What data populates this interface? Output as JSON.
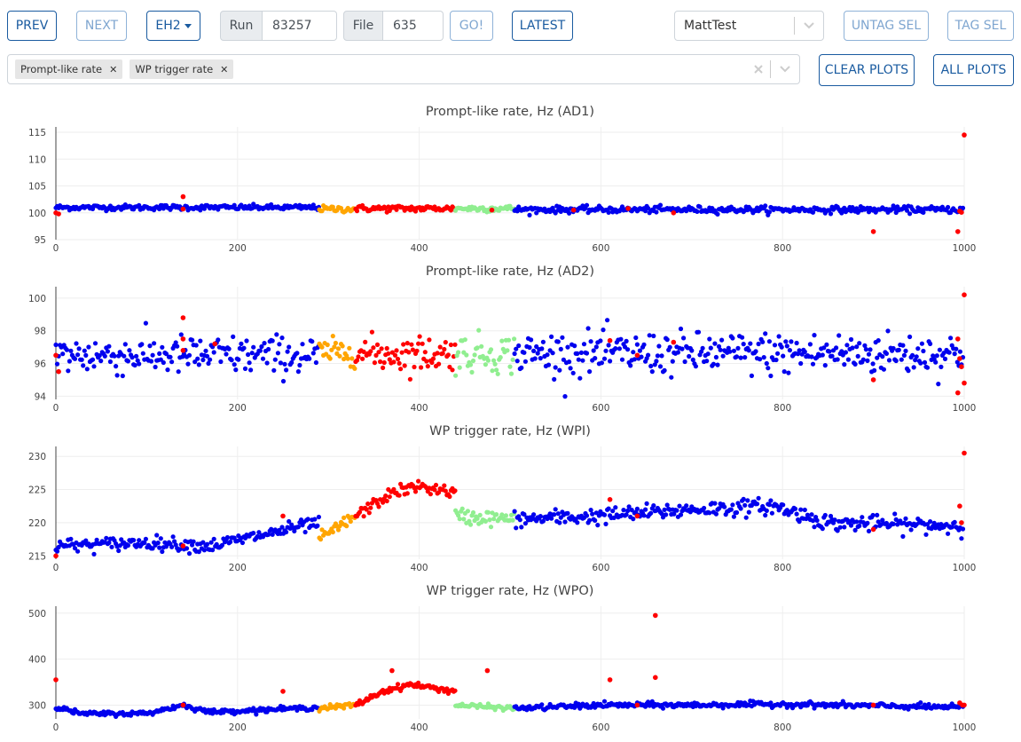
{
  "toolbar": {
    "prev_label": "PREV",
    "next_label": "NEXT",
    "hall_label": "EH2",
    "run_label": "Run",
    "run_value": "83257",
    "file_label": "File",
    "file_value": "635",
    "go_label": "GO!",
    "latest_label": "LATEST",
    "tag_select_value": "MattTest",
    "untag_label": "UNTAG SEL",
    "tag_label": "TAG SEL"
  },
  "plot_selector": {
    "chips": [
      "Prompt-like rate",
      "WP trigger rate"
    ],
    "clear_label": "CLEAR PLOTS",
    "all_label": "ALL PLOTS"
  },
  "colors": {
    "accent": "#1a5ba0",
    "blue": "#0000ee",
    "orange": "#ffa500",
    "red": "#ff0000",
    "green": "#90ee90"
  },
  "chart_data": [
    {
      "type": "scatter",
      "title": "Prompt-like rate, Hz (AD1)",
      "xlim": [
        0,
        1000
      ],
      "ylim": [
        95,
        116
      ],
      "x_ticks": [
        0,
        200,
        400,
        600,
        800,
        1000
      ],
      "y_ticks": [
        95,
        100,
        105,
        110,
        115
      ],
      "segments": [
        {
          "color": "blue",
          "x": [
            0,
            290
          ],
          "trend": [
            [
              0,
              101
            ],
            [
              290,
              101
            ]
          ],
          "noise": 0.5
        },
        {
          "color": "orange",
          "x": [
            290,
            330
          ],
          "trend": [
            [
              290,
              100.7
            ],
            [
              330,
              100.7
            ]
          ],
          "noise": 0.6
        },
        {
          "color": "red",
          "x": [
            330,
            440
          ],
          "trend": [
            [
              330,
              100.8
            ],
            [
              440,
              100.8
            ]
          ],
          "noise": 0.6
        },
        {
          "color": "green",
          "x": [
            440,
            505
          ],
          "trend": [
            [
              440,
              100.8
            ],
            [
              505,
              100.8
            ]
          ],
          "noise": 0.6
        },
        {
          "color": "blue",
          "x": [
            505,
            1000
          ],
          "trend": [
            [
              505,
              100.6
            ],
            [
              1000,
              100.6
            ]
          ],
          "noise": 0.6
        }
      ],
      "outliers": [
        [
          0,
          100
        ],
        [
          3,
          99.8
        ],
        [
          140,
          103
        ],
        [
          140,
          100.7
        ],
        [
          480,
          100.5
        ],
        [
          570,
          100.5
        ],
        [
          630,
          100.8
        ],
        [
          680,
          100
        ],
        [
          900,
          96.5
        ],
        [
          1000,
          114.5
        ],
        [
          993,
          96.5
        ],
        [
          995,
          100.3
        ],
        [
          997,
          100.1
        ]
      ]
    },
    {
      "type": "scatter",
      "title": "Prompt-like rate, Hz (AD2)",
      "xlim": [
        0,
        1000
      ],
      "ylim": [
        93.8,
        100.7
      ],
      "x_ticks": [
        0,
        200,
        400,
        600,
        800,
        1000
      ],
      "y_ticks": [
        94,
        96,
        98,
        100
      ],
      "segments": [
        {
          "color": "blue",
          "x": [
            0,
            290
          ],
          "trend": [
            [
              0,
              96.5
            ],
            [
              290,
              96.5
            ]
          ],
          "noise": 1.2
        },
        {
          "color": "orange",
          "x": [
            290,
            330
          ],
          "trend": [
            [
              290,
              96.7
            ],
            [
              330,
              96.7
            ]
          ],
          "noise": 0.8
        },
        {
          "color": "red",
          "x": [
            330,
            440
          ],
          "trend": [
            [
              330,
              96.6
            ],
            [
              440,
              96.6
            ]
          ],
          "noise": 1.1
        },
        {
          "color": "green",
          "x": [
            440,
            505
          ],
          "trend": [
            [
              440,
              96.6
            ],
            [
              505,
              96.6
            ]
          ],
          "noise": 1.2
        },
        {
          "color": "blue",
          "x": [
            505,
            1000
          ],
          "trend": [
            [
              505,
              96.6
            ],
            [
              1000,
              96.6
            ]
          ],
          "noise": 1.3
        }
      ],
      "outliers": [
        [
          0,
          96.5
        ],
        [
          3,
          95.5
        ],
        [
          140,
          98.8
        ],
        [
          140,
          97.5
        ],
        [
          140,
          96.8
        ],
        [
          175,
          97.2
        ],
        [
          610,
          97.4
        ],
        [
          640,
          96.5
        ],
        [
          680,
          97.3
        ],
        [
          900,
          95
        ],
        [
          993,
          94.2
        ],
        [
          993,
          97.5
        ],
        [
          995,
          96.3
        ],
        [
          997,
          95.8
        ],
        [
          1000,
          100.2
        ],
        [
          1000,
          94.8
        ]
      ]
    },
    {
      "type": "scatter",
      "title": "WP trigger rate, Hz (WPI)",
      "xlim": [
        0,
        1000
      ],
      "ylim": [
        214.5,
        231.5
      ],
      "x_ticks": [
        0,
        200,
        400,
        600,
        800,
        1000
      ],
      "y_ticks": [
        215,
        220,
        225,
        230
      ],
      "segments": [
        {
          "color": "blue",
          "x": [
            0,
            290
          ],
          "trend": [
            [
              0,
              216.5
            ],
            [
              100,
              217
            ],
            [
              170,
              216.5
            ],
            [
              290,
              220
            ]
          ],
          "noise": 1.0
        },
        {
          "color": "orange",
          "x": [
            290,
            330
          ],
          "trend": [
            [
              290,
              217.5
            ],
            [
              330,
              221
            ]
          ],
          "noise": 1.0
        },
        {
          "color": "red",
          "x": [
            330,
            440
          ],
          "trend": [
            [
              330,
              221
            ],
            [
              370,
              224.5
            ],
            [
              400,
              225.5
            ],
            [
              440,
              224.5
            ]
          ],
          "noise": 0.9
        },
        {
          "color": "green",
          "x": [
            440,
            505
          ],
          "trend": [
            [
              440,
              221
            ],
            [
              505,
              220.5
            ]
          ],
          "noise": 1.2
        },
        {
          "color": "blue",
          "x": [
            505,
            1000
          ],
          "trend": [
            [
              505,
              220.5
            ],
            [
              600,
              221
            ],
            [
              700,
              222
            ],
            [
              790,
              222.5
            ],
            [
              850,
              220
            ],
            [
              1000,
              219.5
            ]
          ],
          "noise": 1.2
        }
      ],
      "outliers": [
        [
          0,
          215
        ],
        [
          140,
          216.5
        ],
        [
          250,
          221
        ],
        [
          610,
          223.5
        ],
        [
          640,
          221
        ],
        [
          900,
          219
        ],
        [
          995,
          222.5
        ],
        [
          997,
          220
        ],
        [
          1000,
          230.5
        ]
      ]
    },
    {
      "type": "scatter",
      "title": "WP trigger rate, Hz (WPO)",
      "xlim": [
        0,
        1000
      ],
      "ylim": [
        270,
        515
      ],
      "x_ticks": [
        0,
        200,
        400,
        600,
        800,
        1000
      ],
      "y_ticks": [
        300,
        400,
        500
      ],
      "segments": [
        {
          "color": "blue",
          "x": [
            0,
            290
          ],
          "trend": [
            [
              0,
              295
            ],
            [
              30,
              281
            ],
            [
              100,
              282
            ],
            [
              140,
              300
            ],
            [
              170,
              285
            ],
            [
              290,
              295
            ]
          ],
          "noise": 5
        },
        {
          "color": "orange",
          "x": [
            290,
            330
          ],
          "trend": [
            [
              290,
              293
            ],
            [
              330,
              300
            ]
          ],
          "noise": 6
        },
        {
          "color": "red",
          "x": [
            330,
            440
          ],
          "trend": [
            [
              330,
              300
            ],
            [
              360,
              330
            ],
            [
              390,
              345
            ],
            [
              440,
              330
            ]
          ],
          "noise": 6
        },
        {
          "color": "green",
          "x": [
            440,
            505
          ],
          "trend": [
            [
              440,
              300
            ],
            [
              505,
              293
            ]
          ],
          "noise": 5
        },
        {
          "color": "blue",
          "x": [
            505,
            1000
          ],
          "trend": [
            [
              505,
              293
            ],
            [
              600,
              300
            ],
            [
              700,
              300
            ],
            [
              800,
              302
            ],
            [
              1000,
              295
            ]
          ],
          "noise": 6
        }
      ],
      "outliers": [
        [
          0,
          355
        ],
        [
          140,
          300
        ],
        [
          250,
          330
        ],
        [
          370,
          375
        ],
        [
          475,
          375
        ],
        [
          610,
          355
        ],
        [
          640,
          300
        ],
        [
          660,
          495
        ],
        [
          660,
          360
        ],
        [
          900,
          300
        ],
        [
          995,
          305
        ],
        [
          998,
          300
        ],
        [
          1000,
          300
        ]
      ]
    }
  ]
}
